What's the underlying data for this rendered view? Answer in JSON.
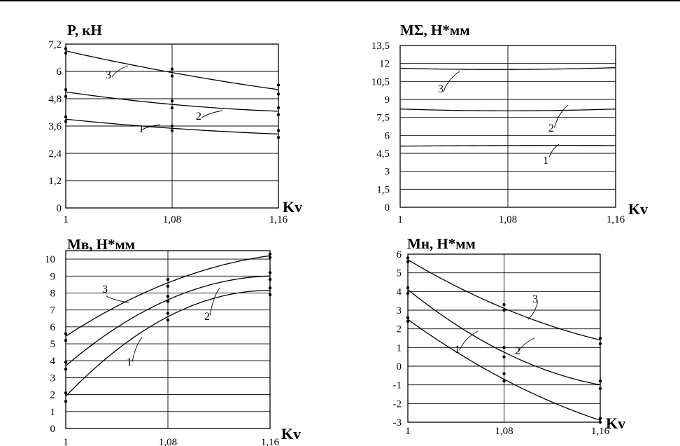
{
  "chart_data": [
    {
      "type": "line",
      "ylabel": "P, кН",
      "xlabel": "Kv",
      "xlim": [
        1,
        1.16
      ],
      "ylim": [
        0,
        7.2
      ],
      "x_ticks": [
        "1",
        "1,08",
        "1,16"
      ],
      "y_ticks": [
        "0",
        "1,2",
        "2,4",
        "3,6",
        "4,8",
        "6",
        "7,2"
      ],
      "grid": true,
      "x": [
        1,
        1.08,
        1.16
      ],
      "series": [
        {
          "name": "1",
          "values": [
            3.9,
            3.5,
            3.25
          ],
          "points": [
            [
              3.8,
              4.0
            ],
            [
              3.4,
              3.6
            ],
            [
              3.1,
              3.4
            ]
          ]
        },
        {
          "name": "2",
          "values": [
            5.1,
            4.55,
            4.25
          ],
          "points": [
            [
              4.9,
              5.2
            ],
            [
              4.4,
              4.7
            ],
            [
              4.1,
              4.4
            ]
          ]
        },
        {
          "name": "3",
          "values": [
            6.9,
            5.95,
            5.2
          ],
          "points": [
            [
              6.8,
              7.0
            ],
            [
              5.8,
              6.1
            ],
            [
              5.0,
              5.4
            ]
          ]
        }
      ]
    },
    {
      "type": "line",
      "ylabel": "MΣ, Н*мм",
      "xlabel": "Kv",
      "xlim": [
        1,
        1.16
      ],
      "ylim": [
        0,
        13.5
      ],
      "x_ticks": [
        "1",
        "1,08",
        "1,16"
      ],
      "y_ticks": [
        "0",
        "1,5",
        "3",
        "4,5",
        "6",
        "7,5",
        "9",
        "10,5",
        "12",
        "13,5"
      ],
      "grid": true,
      "x": [
        1,
        1.08,
        1.16
      ],
      "series": [
        {
          "name": "1",
          "values": [
            5.1,
            5.15,
            5.15
          ]
        },
        {
          "name": "2",
          "values": [
            8.2,
            8.05,
            8.2
          ]
        },
        {
          "name": "3",
          "values": [
            11.6,
            11.5,
            11.65
          ]
        }
      ]
    },
    {
      "type": "line",
      "ylabel": "Мв, Н*мм",
      "xlabel": "Kv",
      "xlim": [
        1,
        1.16
      ],
      "ylim": [
        0,
        10.5
      ],
      "x_ticks": [
        "1",
        "1,08",
        "1,16"
      ],
      "y_ticks": [
        "0",
        "1",
        "2",
        "3",
        "4",
        "5",
        "6",
        "7",
        "8",
        "9",
        "10"
      ],
      "grid": true,
      "x": [
        1,
        1.08,
        1.16
      ],
      "series": [
        {
          "name": "1",
          "values": [
            1.9,
            6.6,
            8.15
          ],
          "points": [
            [
              1.6,
              2.1
            ],
            [
              6.4,
              6.8
            ],
            [
              7.9,
              8.3
            ]
          ]
        },
        {
          "name": "2",
          "values": [
            3.7,
            7.6,
            9.0
          ],
          "points": [
            [
              3.5,
              3.9
            ],
            [
              7.5,
              7.8
            ],
            [
              8.8,
              9.2
            ]
          ]
        },
        {
          "name": "3",
          "values": [
            5.45,
            8.6,
            10.2
          ],
          "points": [
            [
              5.2,
              5.6
            ],
            [
              8.4,
              8.8
            ],
            [
              10.1,
              10.3
            ]
          ]
        }
      ]
    },
    {
      "type": "line",
      "ylabel": "Мн, Н*мм",
      "xlabel": "Kv",
      "xlim": [
        1,
        1.16
      ],
      "ylim": [
        -3,
        6
      ],
      "x_ticks": [
        "1",
        "1,08",
        "1,16"
      ],
      "y_ticks": [
        "-3",
        "-2",
        "-1",
        "0",
        "1",
        "2",
        "3",
        "4",
        "5",
        "6"
      ],
      "grid": true,
      "x": [
        1,
        1.08,
        1.16
      ],
      "series": [
        {
          "name": "1",
          "values": [
            2.5,
            -0.7,
            -2.9
          ],
          "points": [
            [
              2.4,
              2.6
            ],
            [
              -0.8,
              -0.4
            ],
            [
              -3.0,
              -2.8
            ]
          ]
        },
        {
          "name": "2",
          "values": [
            4.1,
            0.75,
            -1.0
          ],
          "points": [
            [
              3.9,
              4.2
            ],
            [
              0.5,
              1.0
            ],
            [
              -1.2,
              -0.8
            ]
          ]
        },
        {
          "name": "3",
          "values": [
            5.7,
            3.1,
            1.4
          ],
          "points": [
            [
              5.6,
              5.8
            ],
            [
              3.0,
              3.3
            ],
            [
              1.2,
              1.5
            ]
          ]
        }
      ]
    }
  ]
}
